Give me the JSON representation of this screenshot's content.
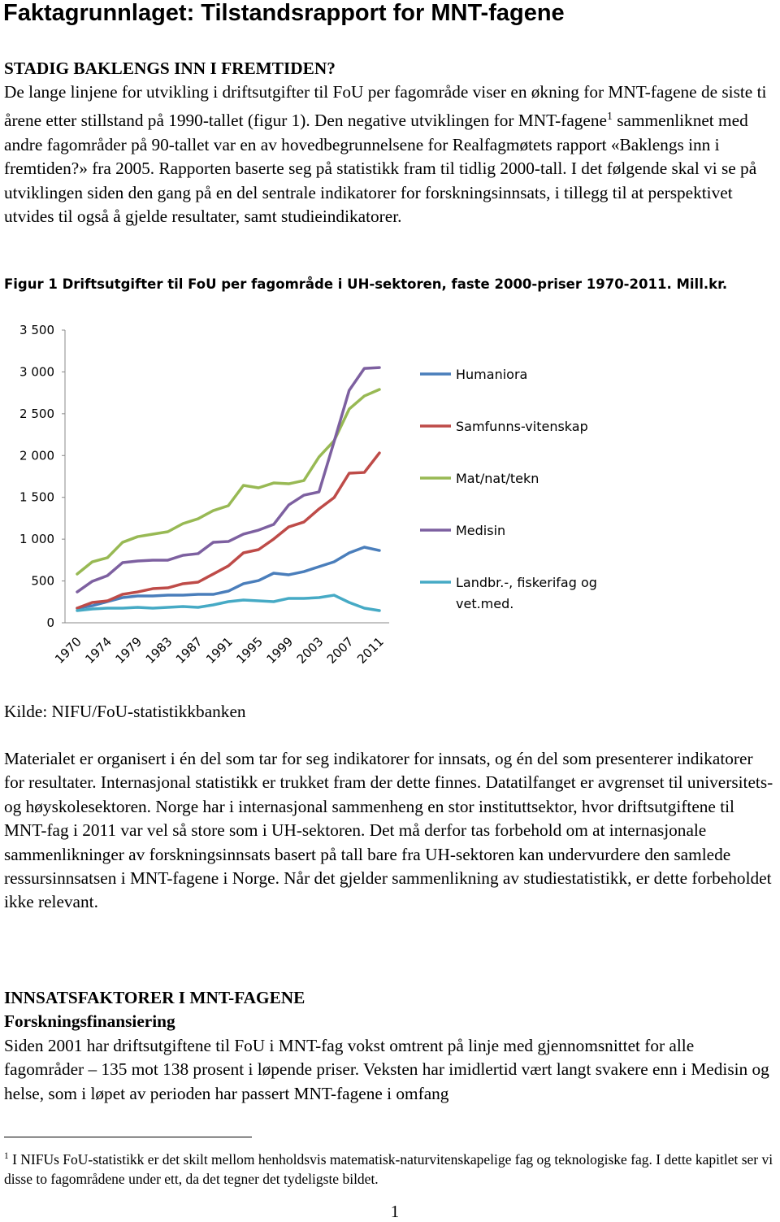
{
  "header": {
    "title": "Faktagrunnlaget: Tilstandsrapport for MNT-fagene"
  },
  "section1": {
    "heading": "STADIG BAKLENGS INN I FREMTIDEN?",
    "paragraph_before": "De lange linjene for utvikling i driftsutgifter til FoU per fagområde viser en økning for MNT-fagene de siste ti årene etter stillstand på 1990-tallet (figur 1). Den negative utviklingen for MNT-fagene",
    "footnote_ref": "1",
    "paragraph_after": "sammenliknet med andre fagområder på 90-tallet var en av hovedbegrunnelsene for Realfagmøtets rapport «Baklengs inn i fremtiden?» fra 2005. Rapporten baserte seg på statistikk fram til tidlig 2000-tall. I det følgende skal vi se på utviklingen siden den gang på en del sentrale indikatorer for forskningsinnsats, i tillegg til at perspektivet utvides til også å gjelde resultater, samt studieindikatorer."
  },
  "chart_data": {
    "type": "line",
    "title": "Figur 1 Driftsutgifter til FoU per fagområde i UH-sektoren, faste 2000-priser 1970-2011. Mill.kr.",
    "categories": [
      "1970",
      null,
      "1974",
      null,
      "1979",
      null,
      "1983",
      null,
      "1987",
      null,
      "1991",
      null,
      "1995",
      null,
      "1999",
      null,
      "2003",
      null,
      "2007",
      null,
      "2011"
    ],
    "series": [
      {
        "name": "Humaniora",
        "color": "#4a7ebb",
        "values": [
          175,
          204,
          253,
          301,
          321,
          321,
          330,
          330,
          340,
          340,
          379,
          467,
          505,
          593,
          574,
          612,
          671,
          729,
          836,
          904,
          865
        ]
      },
      {
        "name": "Samfunns-vitenskap",
        "color": "#be4b48",
        "values": [
          175,
          243,
          262,
          340,
          369,
          408,
          418,
          467,
          486,
          583,
          680,
          836,
          875,
          1001,
          1147,
          1205,
          1361,
          1497,
          1789,
          1798,
          2031
        ]
      },
      {
        "name": "Mat/nat/tekn",
        "color": "#98b954",
        "values": [
          583,
          729,
          778,
          962,
          1030,
          1060,
          1089,
          1186,
          1244,
          1341,
          1400,
          1643,
          1614,
          1672,
          1662,
          1701,
          1983,
          2177,
          2556,
          2712,
          2790
        ]
      },
      {
        "name": "Medisin",
        "color": "#7d60a0",
        "values": [
          369,
          496,
          564,
          719,
          739,
          749,
          749,
          807,
          827,
          962,
          972,
          1060,
          1108,
          1176,
          1409,
          1526,
          1565,
          2167,
          2780,
          3042,
          3052
        ]
      },
      {
        "name": "Landbr.-, fiskerifag og vet.med.",
        "color": "#46aac5",
        "values": [
          146,
          165,
          175,
          175,
          185,
          175,
          185,
          194,
          185,
          214,
          253,
          272,
          262,
          253,
          292,
          292,
          301,
          330,
          243,
          175,
          146
        ]
      }
    ],
    "ylim": [
      0,
      3500
    ],
    "yticks": [
      0,
      500,
      {
        "value": 1000,
        "label": "1 000"
      },
      {
        "value": 1500,
        "label": "1 500"
      },
      {
        "value": 2000,
        "label": "2 000"
      },
      {
        "value": 2500,
        "label": "2 500"
      },
      {
        "value": 3000,
        "label": "3 000"
      },
      {
        "value": 3500,
        "label": "3 500"
      }
    ],
    "grid": false,
    "legend": "right"
  },
  "figure_source": "Kilde: NIFU/FoU-statistikkbanken",
  "paragraph2": "Materialet er organisert i én del som tar for seg indikatorer for innsats, og én del som presenterer indikatorer for resultater. Internasjonal statistikk er trukket fram der dette finnes. Datatilfanget er avgrenset til universitets- og høyskolesektoren. Norge har i internasjonal sammenheng en stor instituttsektor, hvor driftsutgiftene til MNT-fag i 2011 var vel så store som i UH-sektoren. Det må derfor tas forbehold om at internasjonale sammenlikninger av forskningsinnsats basert på tall bare fra UH-sektoren kan undervurdere den samlede ressursinnsatsen i MNT-fagene i Norge. Når det gjelder sammenlikning av studiestatistikk, er dette forbeholdet ikke relevant.",
  "section2": {
    "heading": "INNSATSFAKTORER I MNT-FAGENE",
    "subheading": "Forskningsfinansiering",
    "paragraph": "Siden 2001 har driftsutgiftene til FoU i MNT-fag vokst omtrent på linje med gjennomsnittet for alle fagområder – 135 mot 138 prosent i løpende priser. Veksten har imidlertid vært langt svakere enn i Medisin og helse, som i løpet av perioden har passert MNT-fagene i omfang"
  },
  "footnote": {
    "number": "1",
    "text": "I NIFUs FoU-statistikk er det skilt mellom henholdsvis matematisk-naturvitenskapelige fag og teknologiske fag. I dette kapitlet ser vi disse to fagområdene under ett, da det tegner det tydeligste bildet."
  },
  "page_number": "1"
}
